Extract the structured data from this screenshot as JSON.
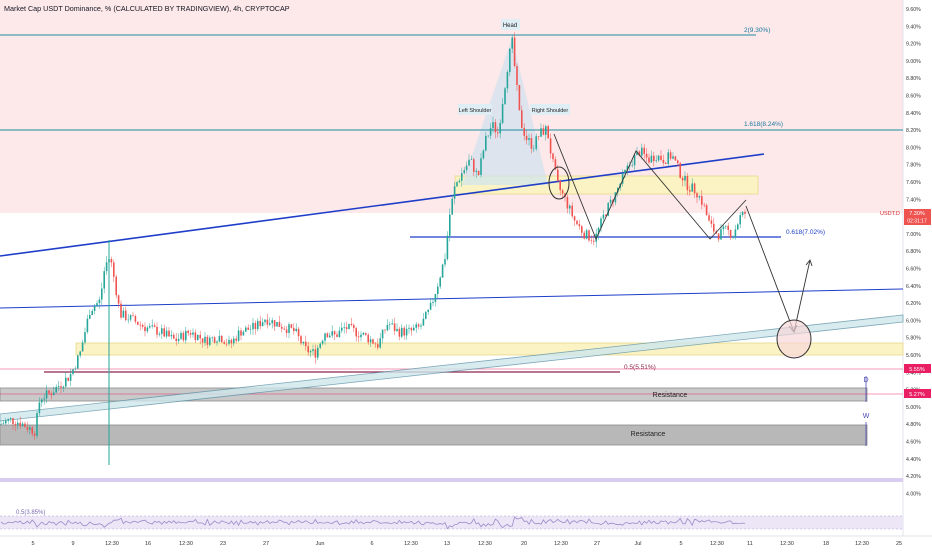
{
  "header": {
    "title": "Market Cap USDT Dominance, % (CALCULATED BY TRADINGVIEW), 4h, CRYPTOCAP"
  },
  "colors": {
    "up": "#26a69a",
    "down": "#ef5350",
    "upper_bg": "#fde8ea",
    "trendline": "#1e3ec9",
    "level_line": "#1a8ba0",
    "zone_fill": "#fbf3c4",
    "resistance_fill": "#b8b8b8",
    "price_badge": "#ef5350",
    "accent_level": "#e91e63",
    "rsi_band": "#e8e0f5",
    "rsi_line": "#9c8ac9"
  },
  "price_axis": {
    "ticks": [
      "9.60%",
      "9.40%",
      "9.20%",
      "9.00%",
      "8.80%",
      "8.60%",
      "8.40%",
      "8.20%",
      "8.00%",
      "7.80%",
      "7.60%",
      "7.40%",
      "7.20%",
      "7.00%",
      "6.80%",
      "6.60%",
      "6.40%",
      "6.20%",
      "6.00%",
      "5.80%",
      "5.60%",
      "5.40%",
      "5.20%",
      "5.00%",
      "4.80%",
      "4.60%",
      "4.40%",
      "4.20%",
      "4.00%"
    ],
    "current_label": "USDT.D",
    "current_value": "7.30%",
    "current_countdown": "02:31:17",
    "tag_1": "5.55%",
    "tag_2": "5.27%"
  },
  "time_axis": {
    "ticks": [
      "5",
      "9",
      "12:30",
      "16",
      "12:30",
      "23",
      "27",
      "Jun",
      "6",
      "12:30",
      "13",
      "12:30",
      "20",
      "12:30",
      "27",
      "Jul",
      "5",
      "12:30",
      "11",
      "12:30",
      "18",
      "12:30",
      "25"
    ]
  },
  "annotations": {
    "head": "Head",
    "left_shoulder": "Left Shoulder",
    "right_shoulder": "Right Shoulder",
    "fib_2": "2(9.30%)",
    "fib_1618": "1.618(8.24%)",
    "fib_0618": "0.618(7.02%)",
    "fib_05": "0.5(5.51%)",
    "resistance_1": "Resistance",
    "resistance_2": "Resistance",
    "marker_d": "D",
    "marker_w": "W",
    "rsi_label": "0.5(3.85%)"
  },
  "chart_data": {
    "type": "candlestick",
    "title": "Market Cap USDT Dominance, % (CALCULATED BY TRADINGVIEW), 4h, CRYPTOCAP",
    "unit": "%",
    "y_range": [
      3.95,
      9.62
    ],
    "last_value": 7.3,
    "price_path": [
      [
        0,
        4.9
      ],
      [
        10,
        4.95
      ],
      [
        20,
        4.92
      ],
      [
        30,
        4.85
      ],
      [
        35,
        4.82
      ],
      [
        40,
        5.2
      ],
      [
        50,
        5.25
      ],
      [
        60,
        5.35
      ],
      [
        70,
        5.45
      ],
      [
        80,
        5.7
      ],
      [
        90,
        6.2
      ],
      [
        100,
        6.3
      ],
      [
        105,
        6.7
      ],
      [
        110,
        6.8
      ],
      [
        115,
        6.5
      ],
      [
        120,
        6.15
      ],
      [
        130,
        6.1
      ],
      [
        145,
        6.0
      ],
      [
        160,
        5.95
      ],
      [
        175,
        5.85
      ],
      [
        190,
        5.95
      ],
      [
        205,
        5.85
      ],
      [
        220,
        5.9
      ],
      [
        230,
        5.8
      ],
      [
        240,
        5.95
      ],
      [
        255,
        6.0
      ],
      [
        265,
        6.1
      ],
      [
        275,
        6.05
      ],
      [
        285,
        6.0
      ],
      [
        295,
        5.95
      ],
      [
        305,
        5.75
      ],
      [
        315,
        5.7
      ],
      [
        325,
        5.95
      ],
      [
        335,
        5.9
      ],
      [
        345,
        6.0
      ],
      [
        355,
        5.95
      ],
      [
        365,
        5.9
      ],
      [
        378,
        5.8
      ],
      [
        388,
        6.05
      ],
      [
        398,
        5.95
      ],
      [
        410,
        5.95
      ],
      [
        420,
        6.0
      ],
      [
        430,
        6.2
      ],
      [
        438,
        6.5
      ],
      [
        445,
        6.8
      ],
      [
        450,
        7.3
      ],
      [
        455,
        7.6
      ],
      [
        462,
        7.75
      ],
      [
        470,
        7.9
      ],
      [
        478,
        7.7
      ],
      [
        485,
        8.1
      ],
      [
        492,
        8.3
      ],
      [
        498,
        8.2
      ],
      [
        503,
        8.6
      ],
      [
        508,
        9.0
      ],
      [
        512,
        9.25
      ],
      [
        516,
        8.8
      ],
      [
        520,
        8.35
      ],
      [
        526,
        8.15
      ],
      [
        533,
        8.05
      ],
      [
        540,
        8.2
      ],
      [
        547,
        8.25
      ],
      [
        552,
        7.9
      ],
      [
        558,
        7.6
      ],
      [
        565,
        7.45
      ],
      [
        575,
        7.2
      ],
      [
        585,
        7.05
      ],
      [
        595,
        7.0
      ],
      [
        605,
        7.3
      ],
      [
        615,
        7.5
      ],
      [
        625,
        7.75
      ],
      [
        633,
        7.9
      ],
      [
        640,
        8.0
      ],
      [
        648,
        7.9
      ],
      [
        656,
        7.95
      ],
      [
        664,
        7.9
      ],
      [
        672,
        7.95
      ],
      [
        680,
        7.75
      ],
      [
        688,
        7.6
      ],
      [
        696,
        7.55
      ],
      [
        703,
        7.4
      ],
      [
        710,
        7.15
      ],
      [
        718,
        7.05
      ],
      [
        726,
        7.1
      ],
      [
        733,
        7.05
      ],
      [
        740,
        7.25
      ],
      [
        746,
        7.3
      ]
    ]
  }
}
